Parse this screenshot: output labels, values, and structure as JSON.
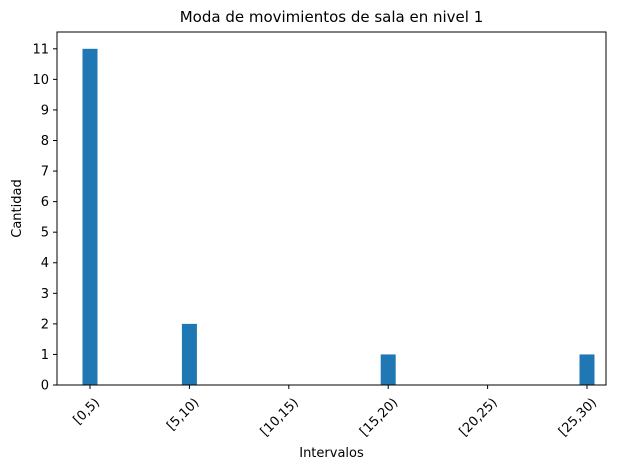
{
  "chart_data": {
    "type": "bar",
    "title": "Moda de movimientos de sala en nivel 1",
    "xlabel": "Intervalos",
    "ylabel": "Cantidad",
    "categories": [
      "[0,5)",
      "[5,10)",
      "[10,15)",
      "[15,20)",
      "[20,25)",
      "[25,30)"
    ],
    "values": [
      11,
      2,
      0,
      1,
      0,
      1
    ],
    "ylim": [
      0,
      11.55
    ],
    "yticks": [
      0,
      1,
      2,
      3,
      4,
      5,
      6,
      7,
      8,
      9,
      10,
      11
    ],
    "bar_color": "#1f77b4",
    "grid": false,
    "xtick_rotation": 45
  }
}
